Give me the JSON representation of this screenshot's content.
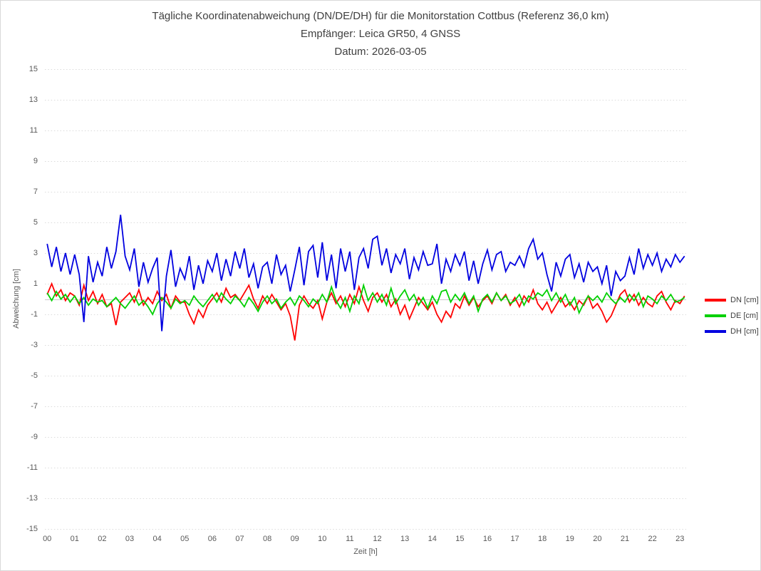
{
  "header": {
    "title_line1": "Tägliche Koordinatenabweichung (DN/DE/DH) für die Monitorstation Cottbus (Referenz 36,0 km)",
    "title_line2": "Empfänger: Leica GR50, 4 GNSS",
    "title_line3": "Datum: 2026-03-05"
  },
  "axes": {
    "y": {
      "label": "Abweichung [cm]",
      "min": -15,
      "max": 15,
      "ticks": [
        15,
        13,
        11,
        9,
        7,
        5,
        3,
        1,
        -1,
        -3,
        -5,
        -7,
        -9,
        -11,
        -13,
        -15
      ]
    },
    "x": {
      "label": "Zeit [h]",
      "ticks": [
        "00",
        "01",
        "02",
        "03",
        "04",
        "05",
        "06",
        "07",
        "08",
        "09",
        "10",
        "11",
        "12",
        "13",
        "14",
        "15",
        "16",
        "17",
        "18",
        "19",
        "20",
        "21",
        "22",
        "23"
      ]
    }
  },
  "legend": {
    "position": "right",
    "items": [
      {
        "id": "dn",
        "label": "DN [cm]",
        "color": "#ff0000"
      },
      {
        "id": "de",
        "label": "DE [cm]",
        "color": "#00d000"
      },
      {
        "id": "dh",
        "label": "DH [cm]",
        "color": "#0000e0"
      }
    ]
  },
  "colors": {
    "gridline": "#dbdbdb",
    "zero_line": "#c9c9c9",
    "tick_text": "#595959",
    "title_text": "#404040",
    "border": "#d9d9d9"
  },
  "chart_data": {
    "type": "line",
    "title": "Tägliche Koordinatenabweichung (DN/DE/DH) für die Monitorstation Cottbus (Referenz 36,0 km)",
    "subtitle_receiver": "Empfänger: Leica GR50, 4 GNSS",
    "subtitle_date": "Datum: 2026-03-05",
    "xlabel": "Zeit [h]",
    "ylabel": "Abweichung [cm]",
    "ylim": [
      -15,
      15
    ],
    "xlim_hours": [
      0,
      23.5
    ],
    "grid": "horizontal-dotted",
    "legend_position": "right",
    "x_hours_start": 0,
    "x_hours_step": 0.1666667,
    "n_points": 140,
    "series": [
      {
        "id": "dn",
        "name": "DN [cm]",
        "color": "#ff0000",
        "values": [
          0.3,
          1.0,
          0.2,
          0.6,
          -0.1,
          0.4,
          0.2,
          -0.4,
          0.9,
          -0.1,
          0.5,
          -0.3,
          0.3,
          -0.5,
          -0.3,
          -1.7,
          -0.2,
          0.1,
          0.4,
          -0.2,
          0.6,
          -0.4,
          0.1,
          -0.3,
          0.5,
          -0.1,
          0.3,
          -0.6,
          0.2,
          -0.2,
          -0.2,
          -1.0,
          -1.6,
          -0.7,
          -1.2,
          -0.4,
          0.0,
          0.4,
          -0.2,
          0.7,
          0.1,
          0.3,
          -0.1,
          0.4,
          0.9,
          0.0,
          -0.6,
          0.2,
          -0.3,
          0.3,
          -0.2,
          -0.7,
          -0.3,
          -1.1,
          -2.7,
          -0.4,
          0.2,
          -0.3,
          -0.6,
          -0.1,
          -1.3,
          -0.2,
          0.4,
          -0.3,
          0.2,
          -0.5,
          0.3,
          -0.3,
          0.8,
          -0.1,
          -0.8,
          0.1,
          0.4,
          -0.2,
          0.3,
          -0.5,
          0.0,
          -1.0,
          -0.4,
          -1.3,
          -0.6,
          0.1,
          -0.3,
          -0.7,
          -0.2,
          -1.0,
          -1.5,
          -0.8,
          -1.2,
          -0.3,
          -0.6,
          0.2,
          -0.4,
          0.1,
          -0.5,
          -0.1,
          0.2,
          -0.3,
          0.4,
          -0.1,
          0.3,
          -0.4,
          0.1,
          -0.5,
          0.2,
          -0.2,
          0.6,
          -0.3,
          -0.7,
          -0.2,
          -0.9,
          -0.4,
          0.1,
          -0.5,
          -0.2,
          -0.7,
          -0.1,
          -0.4,
          0.2,
          -0.6,
          -0.3,
          -0.8,
          -1.5,
          -1.1,
          -0.4,
          0.3,
          0.6,
          -0.2,
          0.3,
          -0.4,
          0.1,
          -0.3,
          -0.5,
          0.2,
          0.5,
          -0.2,
          -0.7,
          -0.1,
          -0.3,
          0.2
        ]
      },
      {
        "id": "de",
        "name": "DE [cm]",
        "color": "#00d000",
        "values": [
          0.4,
          -0.1,
          0.5,
          0.0,
          0.3,
          -0.2,
          0.2,
          -0.3,
          0.1,
          -0.4,
          0.0,
          -0.2,
          -0.1,
          -0.5,
          -0.2,
          0.1,
          -0.3,
          -0.6,
          -0.2,
          0.2,
          -0.4,
          -0.1,
          -0.5,
          -1.0,
          -0.3,
          0.1,
          -0.2,
          -0.6,
          0.0,
          -0.3,
          -0.1,
          -0.4,
          0.2,
          -0.2,
          -0.5,
          -0.1,
          0.3,
          -0.2,
          0.4,
          0.0,
          -0.3,
          0.2,
          -0.1,
          -0.5,
          0.1,
          -0.3,
          -0.8,
          -0.2,
          0.2,
          -0.3,
          0.0,
          -0.6,
          -0.2,
          0.1,
          -0.4,
          0.2,
          -0.1,
          -0.5,
          0.0,
          -0.3,
          0.3,
          -0.2,
          0.8,
          -0.1,
          -0.6,
          0.1,
          -0.8,
          0.2,
          -0.3,
          0.9,
          -0.1,
          0.4,
          -0.2,
          0.3,
          -0.4,
          0.7,
          -0.3,
          0.2,
          0.6,
          -0.1,
          0.3,
          -0.4,
          0.1,
          -0.6,
          0.2,
          -0.3,
          0.5,
          0.6,
          -0.2,
          0.3,
          -0.1,
          0.4,
          -0.3,
          0.2,
          -0.8,
          0.0,
          0.3,
          -0.2,
          0.4,
          -0.1,
          0.2,
          -0.3,
          -0.1,
          0.3,
          -0.4,
          0.2,
          0.0,
          0.4,
          0.2,
          0.6,
          -0.1,
          0.4,
          -0.2,
          0.3,
          -0.4,
          0.1,
          -0.9,
          -0.3,
          0.2,
          -0.1,
          0.2,
          -0.2,
          0.4,
          0.0,
          -0.3,
          0.1,
          -0.2,
          0.3,
          -0.1,
          0.4,
          -0.5,
          0.2,
          0.0,
          -0.3,
          0.2,
          -0.1,
          0.3,
          -0.2,
          -0.1,
          0.1
        ]
      },
      {
        "id": "dh",
        "name": "DH [cm]",
        "color": "#0000e0",
        "values": [
          3.6,
          2.1,
          3.4,
          1.8,
          3.0,
          1.6,
          2.9,
          1.6,
          -1.5,
          2.8,
          1.1,
          2.4,
          1.5,
          3.4,
          2.0,
          3.1,
          5.5,
          2.8,
          1.9,
          3.3,
          0.8,
          2.4,
          1.1,
          2.0,
          2.7,
          -2.1,
          1.5,
          3.2,
          0.8,
          2.0,
          1.3,
          2.8,
          0.6,
          2.2,
          1.0,
          2.5,
          1.8,
          3.0,
          1.2,
          2.6,
          1.5,
          3.1,
          2.0,
          3.3,
          1.4,
          2.3,
          0.7,
          2.1,
          2.4,
          1.0,
          2.9,
          1.6,
          2.2,
          0.5,
          1.9,
          3.4,
          0.9,
          3.1,
          3.5,
          1.4,
          3.7,
          1.2,
          2.9,
          0.7,
          3.3,
          1.8,
          3.1,
          0.6,
          2.7,
          3.3,
          2.0,
          3.9,
          4.1,
          2.2,
          3.3,
          1.7,
          2.9,
          2.3,
          3.3,
          1.3,
          2.7,
          1.9,
          3.1,
          2.2,
          2.3,
          3.6,
          1.0,
          2.6,
          1.8,
          2.9,
          2.2,
          3.1,
          1.2,
          2.5,
          1.0,
          2.3,
          3.2,
          1.9,
          2.9,
          3.1,
          1.8,
          2.4,
          2.2,
          2.8,
          2.1,
          3.3,
          3.9,
          2.6,
          3.0,
          1.6,
          0.5,
          2.4,
          1.5,
          2.6,
          2.9,
          1.4,
          2.3,
          1.1,
          2.4,
          1.8,
          2.1,
          1.0,
          2.2,
          0.2,
          1.8,
          1.2,
          1.5,
          2.7,
          1.6,
          3.3,
          2.0,
          2.9,
          2.2,
          3.0,
          1.8,
          2.6,
          2.1,
          2.9,
          2.4,
          2.8
        ]
      }
    ]
  }
}
